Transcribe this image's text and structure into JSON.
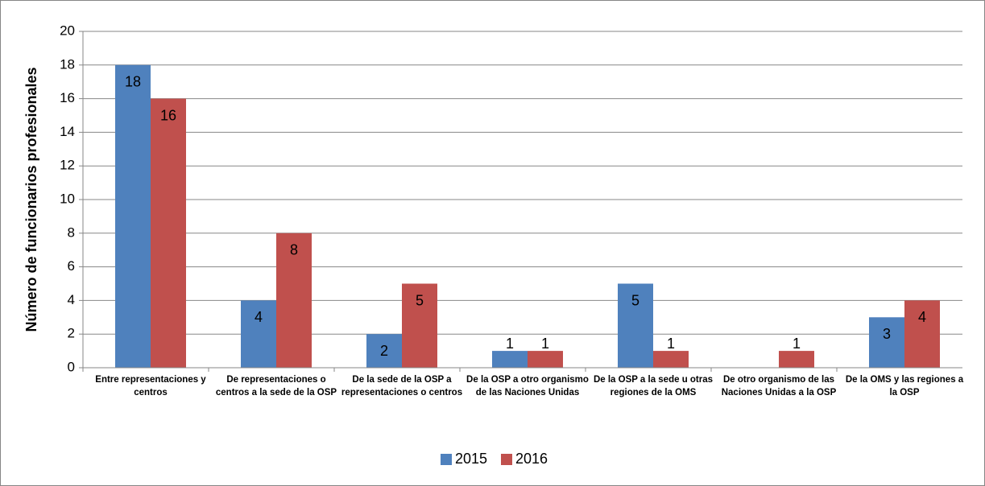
{
  "chart_data": {
    "type": "bar",
    "y_label": "Número de funcionarios profesionales",
    "categories": [
      "Entre representaciones y centros",
      "De representaciones o centros a la sede de la OSP",
      "De la sede de la OSP a representaciones o centros",
      "De la OSP a otro organismo de las Naciones Unidas",
      "De la OSP a la sede u otras regiones de la OMS",
      "De otro organismo de las Naciones Unidas a la OSP",
      "De la OMS y las regiones a la OSP"
    ],
    "series": [
      {
        "name": "2015",
        "color": "#4f81bd",
        "values": [
          18,
          4,
          2,
          1,
          5,
          null,
          3
        ]
      },
      {
        "name": "2016",
        "color": "#c0504d",
        "values": [
          16,
          8,
          5,
          1,
          1,
          1,
          4
        ]
      }
    ],
    "ylim": [
      0,
      20
    ],
    "yticks": [
      0,
      2,
      4,
      6,
      8,
      10,
      12,
      14,
      16,
      18,
      20
    ],
    "grid": true,
    "legend": "bottom"
  }
}
